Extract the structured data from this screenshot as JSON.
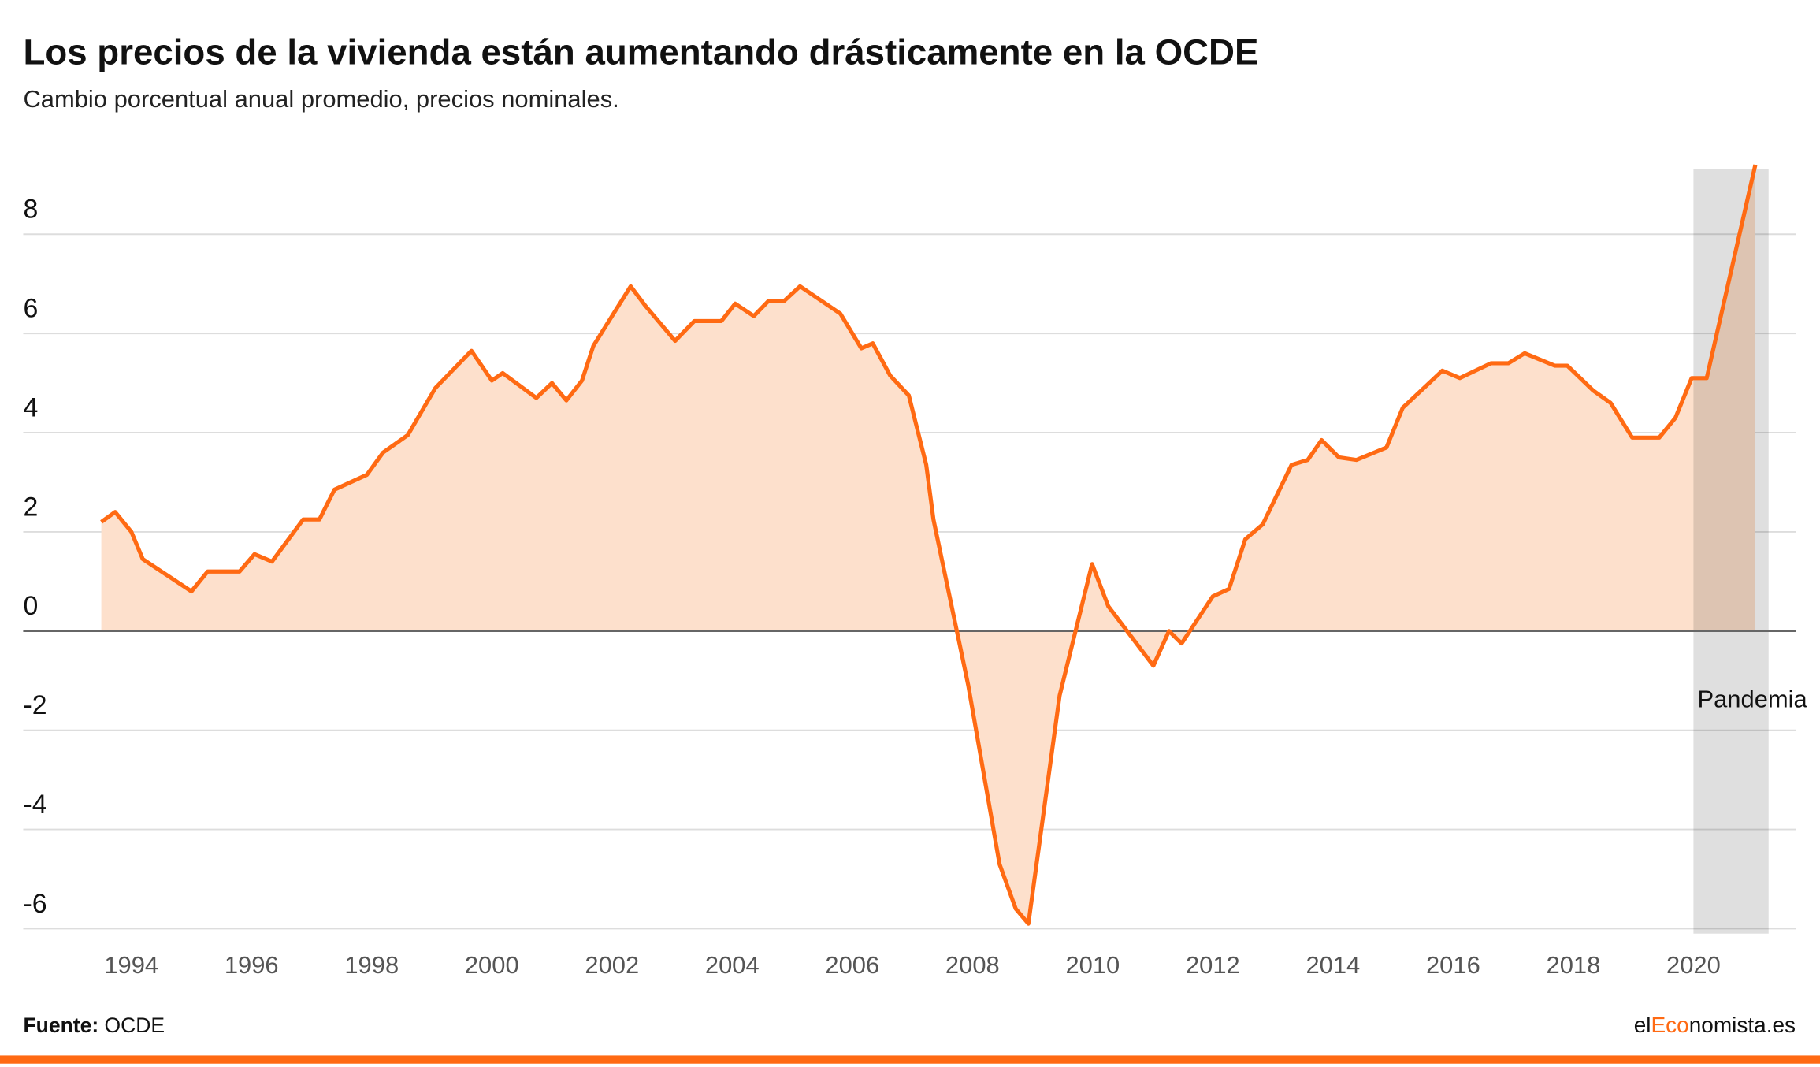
{
  "chart_data": {
    "type": "area",
    "title": "Los precios de la vivienda están aumentando drásticamente en la OCDE",
    "subtitle": "Cambio porcentual anual promedio, precios nominales.",
    "source_label": "Fuente:",
    "source": "OCDE",
    "brand": [
      "el",
      "Eco",
      "nomista.es"
    ],
    "color": "#ff6a13",
    "fill": "#fde0cc",
    "x": [
      1993.5,
      1993.73,
      1994.0,
      1994.19,
      1995.0,
      1995.27,
      1995.8,
      1996.05,
      1996.34,
      1996.86,
      1997.13,
      1997.38,
      1997.92,
      1998.19,
      1998.6,
      1999.06,
      1999.66,
      2000.0,
      2000.18,
      2000.74,
      2001.0,
      2001.24,
      2001.5,
      2001.69,
      2002.31,
      2002.56,
      2003.05,
      2003.37,
      2003.82,
      2004.05,
      2004.36,
      2004.6,
      2004.86,
      2005.13,
      2005.8,
      2006.15,
      2006.34,
      2006.63,
      2006.94,
      2007.23,
      2007.35,
      2007.93,
      2008.45,
      2008.72,
      2008.93,
      2009.45,
      2009.99,
      2010.26,
      2011.01,
      2011.27,
      2011.48,
      2012.0,
      2012.27,
      2012.54,
      2012.83,
      2013.31,
      2013.58,
      2013.81,
      2014.1,
      2014.39,
      2014.89,
      2015.16,
      2015.82,
      2016.11,
      2016.63,
      2016.92,
      2017.19,
      2017.69,
      2017.9,
      2018.33,
      2018.62,
      2018.98,
      2019.43,
      2019.7,
      2019.97,
      2020.22,
      2021.03
    ],
    "values": [
      2.2,
      2.4,
      2.0,
      1.45,
      0.8,
      1.2,
      1.2,
      1.55,
      1.4,
      2.25,
      2.25,
      2.85,
      3.15,
      3.6,
      3.95,
      4.9,
      5.65,
      5.05,
      5.2,
      4.7,
      5.0,
      4.65,
      5.05,
      5.75,
      6.95,
      6.55,
      5.85,
      6.25,
      6.25,
      6.6,
      6.35,
      6.65,
      6.65,
      6.95,
      6.4,
      5.7,
      5.8,
      5.15,
      4.75,
      3.35,
      2.25,
      -1.1,
      -4.7,
      -5.6,
      -5.9,
      -1.3,
      1.35,
      0.5,
      -0.7,
      0,
      -0.25,
      0.7,
      0.85,
      1.85,
      2.15,
      3.35,
      3.45,
      3.85,
      3.5,
      3.45,
      3.7,
      4.5,
      5.25,
      5.1,
      5.4,
      5.4,
      5.6,
      5.35,
      5.35,
      4.85,
      4.6,
      3.9,
      3.9,
      4.3,
      5.1,
      5.1,
      9.4
    ],
    "shade": {
      "label": "Pandemia",
      "x": [
        2020,
        2021.25
      ],
      "ytop": 9.32,
      "color": "#d9d9d9"
    },
    "xlim": [
      1992.2,
      2021.7
    ],
    "ylim": [
      -6.1,
      9.5
    ],
    "xticks": [
      1994,
      1996,
      1998,
      2000,
      2002,
      2004,
      2006,
      2008,
      2010,
      2012,
      2014,
      2016,
      2018,
      2020
    ],
    "yticks": [
      -6,
      -4,
      -2,
      0,
      2,
      4,
      6,
      8
    ],
    "grid": true
  }
}
